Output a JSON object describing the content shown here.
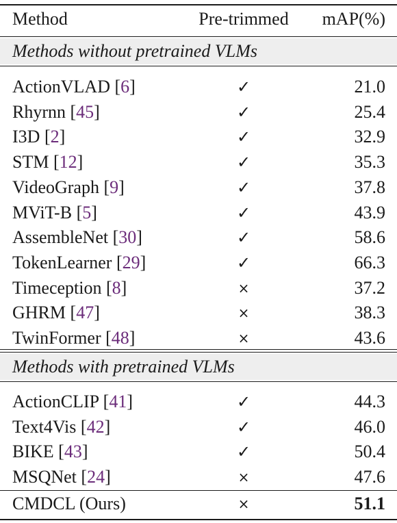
{
  "header": {
    "method": "Method",
    "pretrimmed": "Pre-trimmed",
    "map": "mAP(%)"
  },
  "sections": [
    {
      "title": "Methods without pretrained VLMs",
      "rows": [
        {
          "name": "ActionVLAD",
          "ref": "6",
          "pre": "✓",
          "map": "21.0"
        },
        {
          "name": "Rhyrnn",
          "ref": "45",
          "pre": "✓",
          "map": "25.4"
        },
        {
          "name": "I3D",
          "ref": "2",
          "pre": "✓",
          "map": "32.9"
        },
        {
          "name": "STM",
          "ref": "12",
          "pre": "✓",
          "map": "35.3"
        },
        {
          "name": "VideoGraph",
          "ref": "9",
          "pre": "✓",
          "map": "37.8"
        },
        {
          "name": "MViT-B",
          "ref": "5",
          "pre": "✓",
          "map": "43.9"
        },
        {
          "name": "AssembleNet",
          "ref": "30",
          "pre": "✓",
          "map": "58.6"
        },
        {
          "name": "TokenLearner",
          "ref": "29",
          "pre": "✓",
          "map": "66.3"
        },
        {
          "name": "Timeception",
          "ref": "8",
          "pre": "×",
          "map": "37.2"
        },
        {
          "name": "GHRM",
          "ref": "47",
          "pre": "×",
          "map": "38.3"
        },
        {
          "name": "TwinFormer",
          "ref": "48",
          "pre": "×",
          "map": "43.6"
        }
      ]
    },
    {
      "title": "Methods with pretrained VLMs",
      "rows": [
        {
          "name": "ActionCLIP",
          "ref": "41",
          "pre": "✓",
          "map": "44.3"
        },
        {
          "name": "Text4Vis",
          "ref": "42",
          "pre": "✓",
          "map": "46.0"
        },
        {
          "name": "BIKE",
          "ref": "43",
          "pre": "✓",
          "map": "50.4"
        },
        {
          "name": "MSQNet",
          "ref": "24",
          "pre": "×",
          "map": "47.6"
        }
      ]
    }
  ],
  "ours": {
    "name": "CMDCL (Ours)",
    "pre": "×",
    "map": "51.1"
  }
}
